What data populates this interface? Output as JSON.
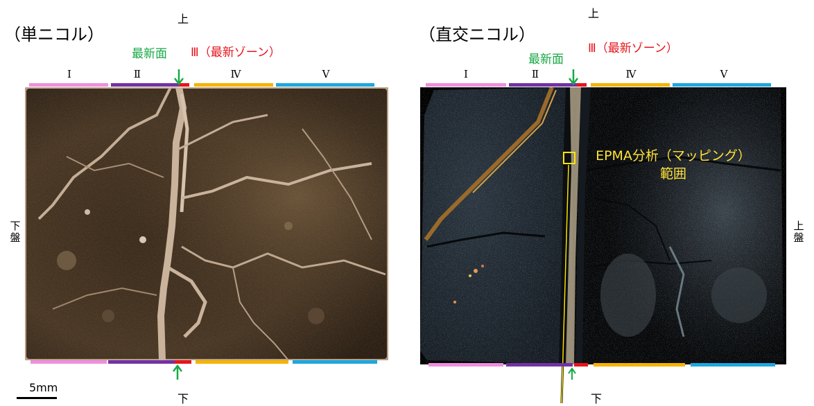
{
  "colors": {
    "zone_i": "#ef8fde",
    "zone_ii": "#7332a6",
    "zone_iii": "#e8141c",
    "zone_iv": "#f5b400",
    "zone_v": "#1ca8e0",
    "newest_arrow": "#17a845",
    "epma_box": "#ffe600"
  },
  "left": {
    "title": "（単ニコル）",
    "top_label": "上",
    "bottom_label": "下",
    "side_label": "下盤",
    "newest_surface": "最新面",
    "zone3_label": "Ⅲ（最新ゾーン）",
    "zones": [
      "Ⅰ",
      "Ⅱ",
      "Ⅳ",
      "Ⅴ"
    ]
  },
  "right": {
    "title": "（直交ニコル）",
    "top_label": "上",
    "bottom_label": "下",
    "side_label": "上盤",
    "newest_surface": "最新面",
    "zone3_label": "Ⅲ（最新ゾーン）",
    "zones": [
      "Ⅰ",
      "Ⅱ",
      "Ⅳ",
      "Ⅴ"
    ],
    "epma_line1": "EPMA分析（マッピング）",
    "epma_line2": "範囲"
  },
  "scale_bar": {
    "label": "5mm"
  },
  "icons": [
    "down-arrow-icon",
    "up-arrow-icon"
  ]
}
